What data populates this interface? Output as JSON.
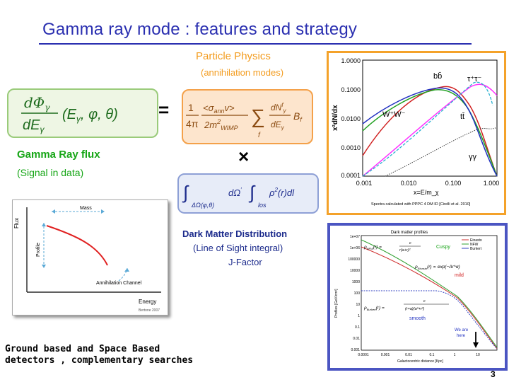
{
  "title": "Gamma ray mode : features and strategy",
  "particle_physics": {
    "title": "Particle Physics",
    "subtitle": "(annihilation modes)"
  },
  "operators": {
    "equals": "=",
    "times": "×"
  },
  "gamma_flux": {
    "label": "Gamma Ray flux",
    "sub": "(Signal in data)"
  },
  "dark_matter": {
    "label": "Dark Matter Distribution",
    "sub": "(Line of Sight integral)",
    "jfactor": "J-Factor"
  },
  "ground": {
    "line1": "Ground based  and  Space Based",
    "line2": "detectors , complementary searches"
  },
  "page_number": "3",
  "figure_flux": {
    "ylabel": "Flux",
    "xlabel": "Energy",
    "mass": "Mass",
    "profile": "Profile",
    "channel": "Annihilation Channel",
    "credit": "Bertone 2007",
    "colors": {
      "curve": "#e02020",
      "arrows": "#5aa9d6"
    }
  },
  "figure_pp": {
    "ylabel": "x²dN/dx",
    "xlabel": "x=E/m_χ",
    "yticks": [
      "1.0000",
      "0.1000",
      "0.0100",
      "0.0010",
      "0.0001"
    ],
    "xticks": [
      "0.001",
      "0.010",
      "0.100",
      "1.000"
    ],
    "labels": {
      "bb": "bb̄",
      "tautau": "τ⁺τ⁻",
      "ww": "W⁺W⁻",
      "tt": "tt̄",
      "gg": "γγ"
    },
    "caption": "Spectra calculated with PPPC 4 DM ID [Cirelli et al. 2010]"
  },
  "figure_dm": {
    "title": "Dark matter profiles",
    "legend": [
      "Einasto",
      "NFW",
      "Burkert"
    ],
    "ylabel": "Profiles [GeV/cm³]",
    "xlabel": "Galactocentric distance [Kpc]",
    "yticks": [
      "1e+07",
      "1e+06",
      "100000",
      "10000",
      "1000",
      "100",
      "10",
      "1",
      "0.1",
      "0.01",
      "0.001"
    ],
    "xticks": [
      "0.0001",
      "0.001",
      "0.01",
      "0.1",
      "1",
      "10"
    ],
    "cuspy": "Cuspy",
    "mild": "mild",
    "smooth": "smooth",
    "here1": "We are",
    "here2": "here"
  }
}
